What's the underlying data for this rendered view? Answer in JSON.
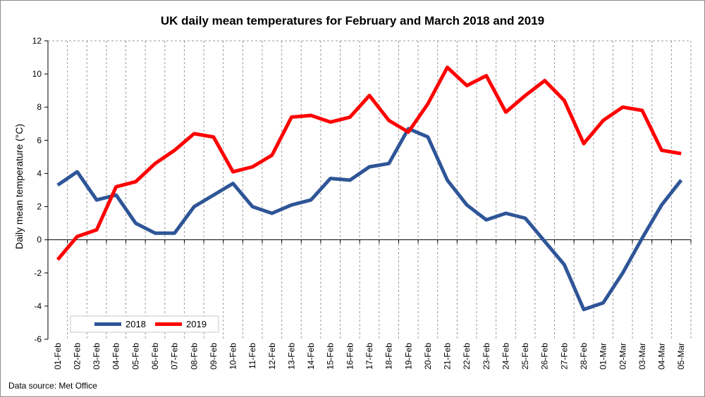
{
  "chart_data": {
    "type": "line",
    "title": "UK daily mean temperatures for February and March 2018 and 2019",
    "xlabel": "",
    "ylabel": "Daily mean temperature (°C)",
    "ylim": [
      -6,
      12
    ],
    "yticks": [
      -6,
      -4,
      -2,
      0,
      2,
      4,
      6,
      8,
      10,
      12
    ],
    "grid": "vertical dashed",
    "legend_position": "bottom-left",
    "categories": [
      "01-Feb",
      "02-Feb",
      "03-Feb",
      "04-Feb",
      "05-Feb",
      "06-Feb",
      "07-Feb",
      "08-Feb",
      "09-Feb",
      "10-Feb",
      "11-Feb",
      "12-Feb",
      "13-Feb",
      "14-Feb",
      "15-Feb",
      "16-Feb",
      "17-Feb",
      "18-Feb",
      "19-Feb",
      "20-Feb",
      "21-Feb",
      "22-Feb",
      "23-Feb",
      "24-Feb",
      "25-Feb",
      "26-Feb",
      "27-Feb",
      "28-Feb",
      "01-Mar",
      "02-Mar",
      "03-Mar",
      "04-Mar",
      "05-Mar"
    ],
    "series": [
      {
        "name": "2018",
        "color": "#2e5597",
        "values": [
          3.3,
          4.1,
          2.4,
          2.7,
          1.0,
          0.4,
          0.4,
          2.0,
          2.7,
          3.4,
          2.0,
          1.6,
          2.1,
          2.4,
          3.7,
          3.6,
          4.4,
          4.6,
          6.7,
          6.2,
          3.6,
          2.1,
          1.2,
          1.6,
          1.3,
          -0.1,
          -1.5,
          -4.2,
          -3.8,
          -2.0,
          0.1,
          2.1,
          3.6
        ]
      },
      {
        "name": "2019",
        "color": "#ff0000",
        "values": [
          -1.2,
          0.2,
          0.6,
          3.2,
          3.5,
          4.6,
          5.4,
          6.4,
          6.2,
          4.1,
          4.4,
          5.1,
          7.4,
          7.5,
          7.1,
          7.4,
          8.7,
          7.2,
          6.5,
          8.2,
          10.4,
          9.3,
          9.9,
          7.7,
          8.7,
          9.6,
          8.4,
          5.8,
          7.2,
          8.0,
          7.8,
          5.4,
          5.2
        ]
      }
    ]
  },
  "footer": {
    "source": "Data source: Met Office"
  }
}
